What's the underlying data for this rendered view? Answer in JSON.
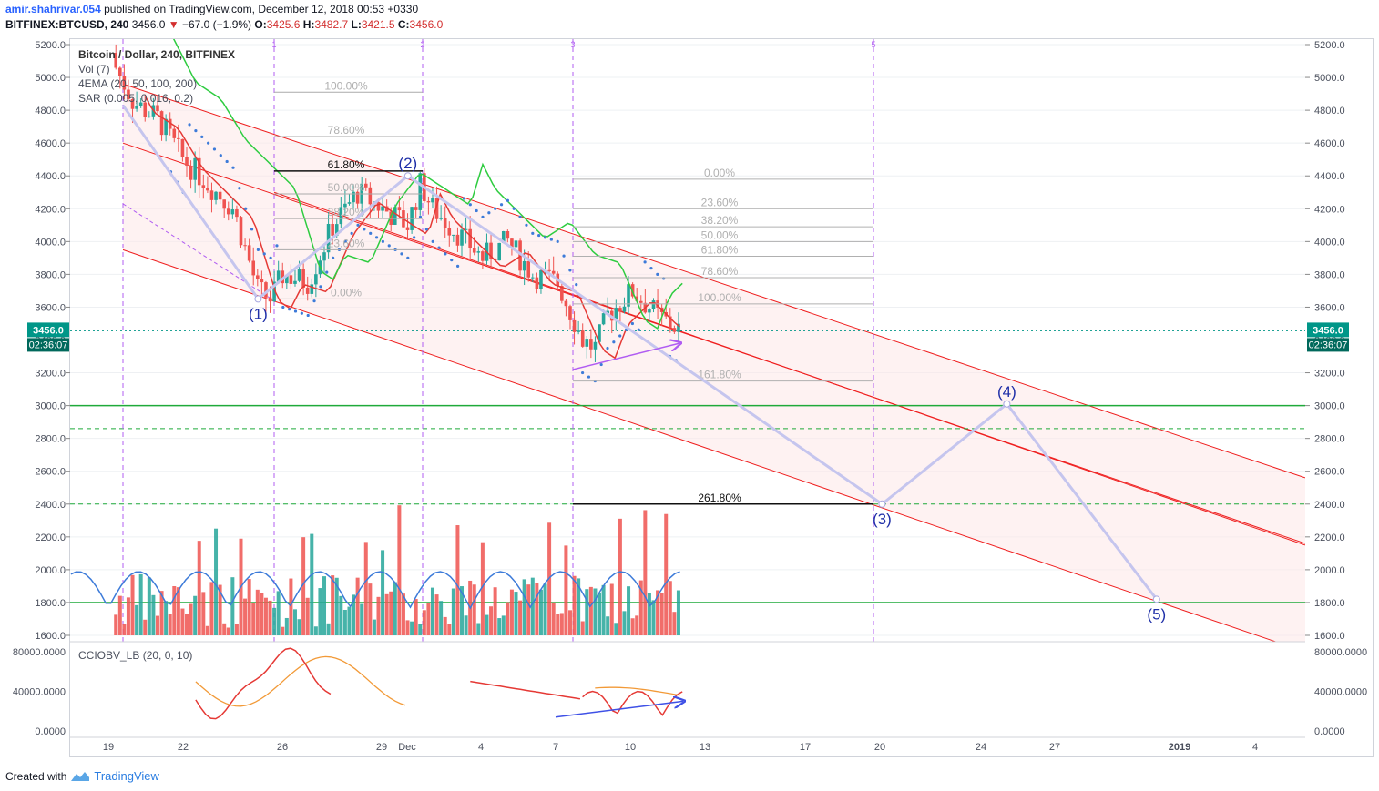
{
  "header": {
    "user": "amir.shahrivar.054",
    "published": "published on TradingView.com, December 12, 2018 00:53 +0330",
    "symbol": "BITFINEX:BTCUSD, 240",
    "last": "3456.0",
    "change": "−67.0 (−1.9%)",
    "o_label": "O:",
    "o": "3425.6",
    "h_label": "H:",
    "h": "3482.7",
    "l_label": "L:",
    "l": "3421.5",
    "c_label": "C:",
    "c": "3456.0"
  },
  "legend": {
    "title": "Bitcoin / Dollar, 240, BITFINEX",
    "vol": "Vol (7)",
    "ema": "4EMA (20, 50, 100, 200)",
    "sar": "SAR (0.005, 0.016, 0.2)",
    "indicator": "CCIOBV_LB (20, 0, 10)"
  },
  "footer": {
    "created": "Created with",
    "brand": "TradingView"
  },
  "colors": {
    "up": "#26a69a",
    "down": "#ef5350",
    "ema_red": "#e53935",
    "ema_green": "#2ecc40",
    "sar": "#3d7bd9",
    "wave": "#c5c5ee",
    "fib_purple": "#b05cf2",
    "price_tag": "#009688"
  },
  "chart_data": [
    {
      "type": "candlestick",
      "symbol": "BTCUSD",
      "timeframe": "240",
      "ylim": [
        1600,
        5200
      ],
      "y_ticks": [
        "5200.0",
        "5000.0",
        "4800.0",
        "4600.0",
        "4400.0",
        "4200.0",
        "4000.0",
        "3800.0",
        "3600.0",
        "3400.0",
        "3200.0",
        "3000.0",
        "2800.0",
        "2600.0",
        "2400.0",
        "2200.0",
        "2000.0",
        "1800.0",
        "1600.0"
      ],
      "x_ticks": [
        "19",
        "22",
        "26",
        "29",
        "Dec",
        "4",
        "7",
        "10",
        "13",
        "17",
        "20",
        "24",
        "27",
        "2019",
        "4"
      ],
      "price_label": "3456.0",
      "countdown": "02:36:07",
      "wave_points": [
        {
          "label": "(1)",
          "date": "Nov 25",
          "price": 3650
        },
        {
          "label": "(2)",
          "date": "Dec 1",
          "price": 4400
        },
        {
          "label": "(3)",
          "date": "Dec 20",
          "price": 2400
        },
        {
          "label": "(4)",
          "date": "Dec 25",
          "price": 3010
        },
        {
          "label": "(5)",
          "date": "Dec 31",
          "price": 1820
        }
      ],
      "vertical_markers": [
        "1",
        "2",
        "3",
        "5"
      ],
      "fib_left": [
        {
          "label": "100.00%",
          "price": 4910
        },
        {
          "label": "78.60%",
          "price": 4640
        },
        {
          "label": "61.80%",
          "price": 4430
        },
        {
          "label": "50.00%",
          "price": 4290
        },
        {
          "label": "38.20%",
          "price": 4140
        },
        {
          "label": "23.60%",
          "price": 3950
        },
        {
          "label": "0.00%",
          "price": 3650
        }
      ],
      "fib_right": [
        {
          "label": "0.00%",
          "price": 4380
        },
        {
          "label": "23.60%",
          "price": 4200
        },
        {
          "label": "38.20%",
          "price": 4090
        },
        {
          "label": "50.00%",
          "price": 4000
        },
        {
          "label": "61.80%",
          "price": 3910
        },
        {
          "label": "78.60%",
          "price": 3780
        },
        {
          "label": "100.00%",
          "price": 3620
        },
        {
          "label": "161.80%",
          "price": 3150
        },
        {
          "label": "261.80%",
          "price": 2400
        }
      ],
      "horizontal_levels": [
        3000,
        2860,
        2400,
        1800
      ]
    },
    {
      "type": "line",
      "name": "CCIOBV_LB (20, 0, 10)",
      "ylim": [
        0,
        80000
      ],
      "y_ticks": [
        "80000.0000",
        "40000.0000",
        "0.0000"
      ]
    }
  ]
}
